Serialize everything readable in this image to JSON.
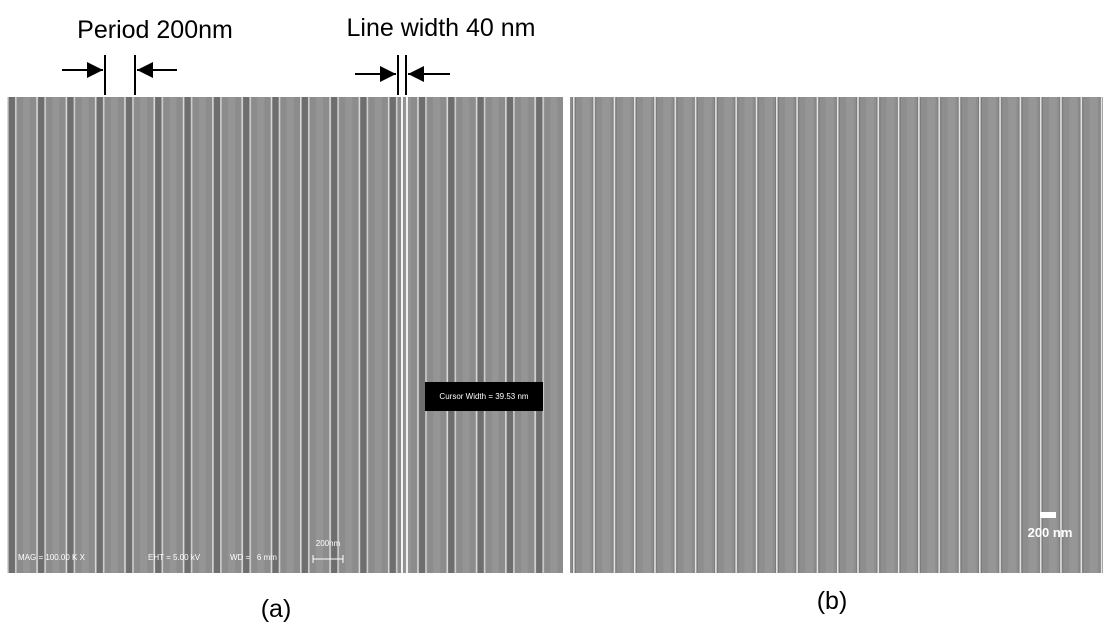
{
  "annotations": {
    "period": "Period 200nm",
    "line_width": "Line width 40 nm"
  },
  "panels": [
    {
      "label": "(a)",
      "info": {
        "mag": "MAG = 100.00 K X",
        "eht": "EHT = 5.00 kV",
        "wd": "WD =   6 mm",
        "scale_bar": "200nm",
        "cursor": "Cursor Width = 39.53 nm"
      }
    },
    {
      "label": "(b)",
      "scale_bar": "200 nm"
    }
  ]
}
